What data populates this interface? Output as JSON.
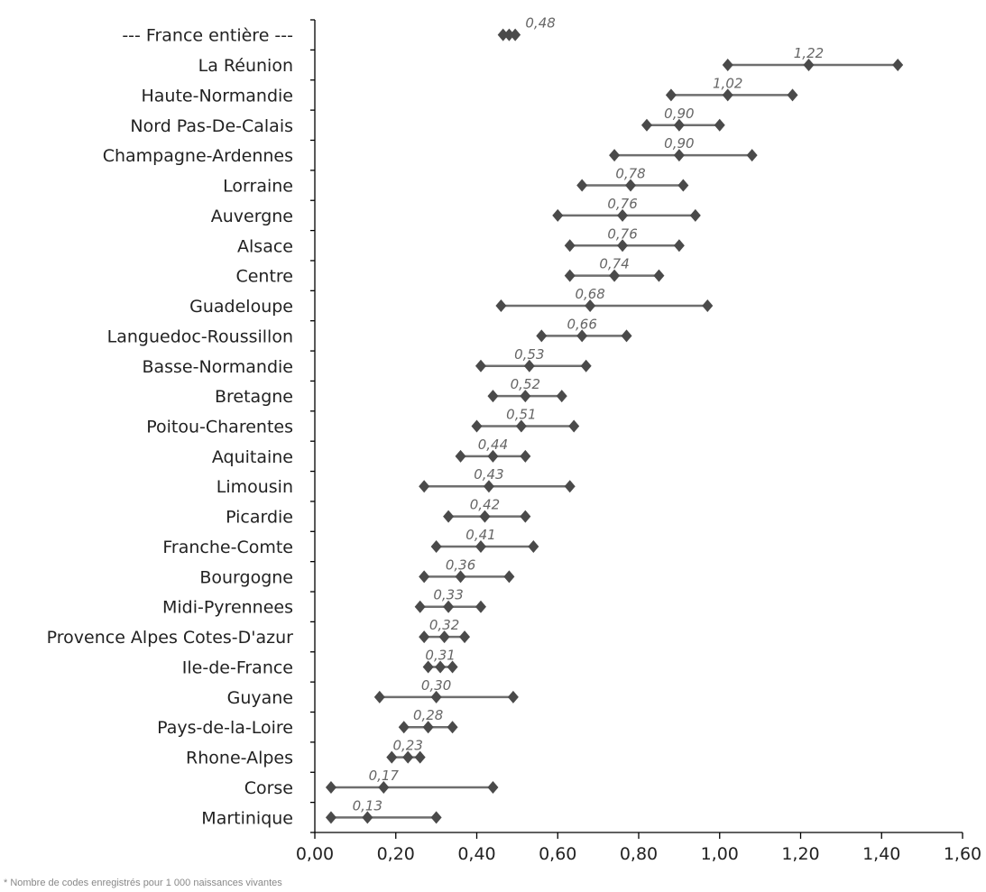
{
  "chart_data": {
    "type": "interval",
    "categories": [
      "--- France entière ---",
      "La Réunion",
      "Haute-Normandie",
      "Nord Pas-De-Calais",
      "Champagne-Ardennes",
      "Lorraine",
      "Auvergne",
      "Alsace",
      "Centre",
      "Guadeloupe",
      "Languedoc-Roussillon",
      "Basse-Normandie",
      "Bretagne",
      "Poitou-Charentes",
      "Aquitaine",
      "Limousin",
      "Picardie",
      "Franche-Comte",
      "Bourgogne",
      "Midi-Pyrennees",
      "Provence Alpes Cotes-D'azur",
      "Ile-de-France",
      "Guyane",
      "Pays-de-la-Loire",
      "Rhone-Alpes",
      "Corse",
      "Martinique"
    ],
    "values": [
      0.48,
      1.22,
      1.02,
      0.9,
      0.9,
      0.78,
      0.76,
      0.76,
      0.74,
      0.68,
      0.66,
      0.53,
      0.52,
      0.51,
      0.44,
      0.43,
      0.42,
      0.41,
      0.36,
      0.33,
      0.32,
      0.31,
      0.3,
      0.28,
      0.23,
      0.17,
      0.13
    ],
    "value_labels": [
      "0,48",
      "1,22",
      "1,02",
      "0,90",
      "0,90",
      "0,78",
      "0,76",
      "0,76",
      "0,74",
      "0,68",
      "0,66",
      "0,53",
      "0,52",
      "0,51",
      "0,44",
      "0,43",
      "0,42",
      "0,41",
      "0,36",
      "0,33",
      "0,32",
      "0,31",
      "0,30",
      "0,28",
      "0,23",
      "0,17",
      "0,13"
    ],
    "lower": [
      0.465,
      1.02,
      0.88,
      0.82,
      0.74,
      0.66,
      0.6,
      0.63,
      0.63,
      0.46,
      0.56,
      0.41,
      0.44,
      0.4,
      0.36,
      0.27,
      0.33,
      0.3,
      0.27,
      0.26,
      0.27,
      0.28,
      0.16,
      0.22,
      0.19,
      0.04,
      0.04
    ],
    "upper": [
      0.495,
      1.44,
      1.18,
      1.0,
      1.08,
      0.91,
      0.94,
      0.9,
      0.85,
      0.97,
      0.77,
      0.67,
      0.61,
      0.64,
      0.52,
      0.63,
      0.52,
      0.54,
      0.48,
      0.41,
      0.37,
      0.34,
      0.49,
      0.34,
      0.26,
      0.44,
      0.3
    ],
    "xlim": [
      0.0,
      1.6
    ],
    "xticks": [
      0.0,
      0.2,
      0.4,
      0.6,
      0.8,
      1.0,
      1.2,
      1.4,
      1.6
    ],
    "xtick_labels": [
      "0,00",
      "0,20",
      "0,40",
      "0,60",
      "0,80",
      "1,00",
      "1,20",
      "1,40",
      "1,60"
    ],
    "grid": false,
    "marker": "diamond",
    "color": "#4a4a4a",
    "line_color": "#6e6e6e",
    "label_color": "#666666"
  },
  "footnote": "* Nombre de codes enregistrés pour 1 000 naissances vivantes"
}
